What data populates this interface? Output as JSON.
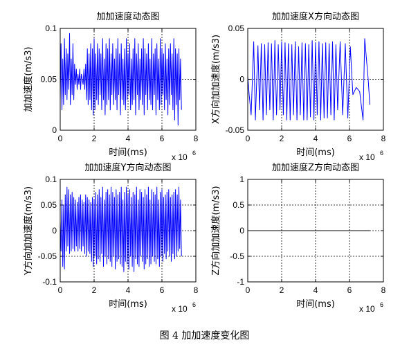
{
  "caption": "图 4  加加速度变化图",
  "colors": {
    "line": "#0000ff",
    "axis": "#000000",
    "background": "#ffffff"
  },
  "chart_data": [
    {
      "type": "line",
      "title": "加加速度动态图",
      "xlabel": "时间(ms)",
      "ylabel": "加加速度(m/s3)",
      "x_multiplier": "x 10",
      "x_exponent": "6",
      "xlim": [
        0,
        8
      ],
      "ylim": [
        0,
        0.1
      ],
      "xticks": [
        "0",
        "2",
        "4",
        "6",
        "8"
      ],
      "yticks": [
        "0",
        "0.05",
        "0.1"
      ],
      "grid": true,
      "series": [
        {
          "color": "#0000ff",
          "x": [
            0,
            0.05,
            0.1,
            0.15,
            0.2,
            0.25,
            0.3,
            0.35,
            0.4,
            0.45,
            0.5,
            0.55,
            0.6,
            0.65,
            0.7,
            0.75,
            0.8,
            0.85,
            0.9,
            0.95,
            1,
            1.05,
            1.1,
            1.15,
            1.2,
            1.25,
            1.3,
            1.35,
            1.4,
            1.45,
            1.5,
            1.55,
            1.6,
            1.65,
            1.7,
            1.75,
            1.8,
            1.85,
            1.9,
            1.95,
            2,
            2.05,
            2.1,
            2.15,
            2.2,
            2.25,
            2.3,
            2.35,
            2.4,
            2.45,
            2.5,
            2.55,
            2.6,
            2.65,
            2.7,
            2.75,
            2.8,
            2.85,
            2.9,
            2.95,
            3,
            3.05,
            3.1,
            3.15,
            3.2,
            3.25,
            3.3,
            3.35,
            3.4,
            3.45,
            3.5,
            3.55,
            3.6,
            3.65,
            3.7,
            3.75,
            3.8,
            3.85,
            3.9,
            3.95,
            4,
            4.05,
            4.1,
            4.15,
            4.2,
            4.25,
            4.3,
            4.35,
            4.4,
            4.45,
            4.5,
            4.55,
            4.6,
            4.65,
            4.7,
            4.75,
            4.8,
            4.85,
            4.9,
            4.95,
            5,
            5.05,
            5.1,
            5.15,
            5.2,
            5.25,
            5.3,
            5.35,
            5.4,
            5.45,
            5.5,
            5.55,
            5.6,
            5.65,
            5.7,
            5.75,
            5.8,
            5.85,
            5.9,
            5.95,
            6,
            6.05,
            6.1,
            6.15,
            6.2,
            6.25,
            6.3,
            6.35,
            6.4,
            6.45,
            6.5,
            6.55,
            6.6,
            6.65,
            6.7,
            6.75,
            6.8,
            6.85,
            6.9,
            6.95,
            7,
            7.05,
            7.1,
            7.15
          ],
          "y": [
            0.03,
            0.085,
            0.02,
            0.07,
            0.025,
            0.09,
            0.035,
            0.08,
            0.03,
            0.075,
            0.04,
            0.095,
            0.025,
            0.07,
            0.035,
            0.085,
            0.03,
            0.065,
            0.045,
            0.06,
            0.04,
            0.055,
            0.045,
            0.06,
            0.04,
            0.055,
            0.05,
            0.045,
            0.06,
            0.04,
            0.065,
            0.03,
            0.08,
            0.025,
            0.075,
            0.03,
            0.085,
            0.02,
            0.08,
            0.015,
            0.09,
            0.02,
            0.075,
            0.03,
            0.085,
            0.025,
            0.08,
            0.035,
            0.075,
            0.02,
            0.09,
            0.03,
            0.07,
            0.015,
            0.085,
            0.025,
            0.08,
            0.03,
            0.09,
            0.02,
            0.075,
            0.035,
            0.085,
            0.025,
            0.07,
            0.03,
            0.08,
            0.02,
            0.09,
            0.035,
            0.075,
            0.015,
            0.085,
            0.03,
            0.07,
            0.025,
            0.08,
            0.02,
            0.09,
            0.03,
            0.075,
            0.035,
            0.085,
            0.02,
            0.07,
            0.025,
            0.08,
            0.03,
            0.09,
            0.015,
            0.075,
            0.035,
            0.085,
            0.02,
            0.07,
            0.03,
            0.08,
            0.025,
            0.09,
            0.015,
            0.08,
            0.035,
            0.075,
            0.02,
            0.085,
            0.03,
            0.07,
            0.025,
            0.09,
            0.02,
            0.075,
            0.035,
            0.08,
            0.015,
            0.085,
            0.03,
            0.07,
            0.02,
            0.09,
            0.025,
            0.08,
            0.035,
            0.075,
            0.02,
            0.085,
            0.03,
            0.07,
            0.015,
            0.08,
            0.025,
            0.085,
            0.035,
            0.075,
            0.02,
            0.09,
            0.01,
            0.08,
            0.025,
            0.075,
            0.005,
            0.08,
            0.03,
            0.07,
            0.02
          ]
        }
      ]
    },
    {
      "type": "line",
      "title": "加加速度X方向动态图",
      "xlabel": "时间(ms)",
      "ylabel": "X方向加加速度(m/s3)",
      "x_multiplier": "x 10",
      "x_exponent": "6",
      "xlim": [
        0,
        8
      ],
      "ylim": [
        -0.05,
        0.05
      ],
      "xticks": [
        "0",
        "2",
        "4",
        "6",
        "8"
      ],
      "yticks": [
        "-0.05",
        "0",
        "0.05"
      ],
      "grid": true,
      "series": [
        {
          "color": "#0000ff",
          "x": [
            0,
            0.08,
            0.2,
            0.35,
            0.45,
            0.6,
            0.7,
            0.8,
            0.9,
            1,
            1.1,
            1.2,
            1.3,
            1.4,
            1.5,
            1.6,
            1.7,
            1.8,
            1.9,
            2,
            2.1,
            2.2,
            2.3,
            2.4,
            2.5,
            2.6,
            2.7,
            2.8,
            2.9,
            3,
            3.1,
            3.2,
            3.3,
            3.4,
            3.5,
            3.6,
            3.7,
            3.8,
            3.9,
            4,
            4.1,
            4.2,
            4.3,
            4.4,
            4.5,
            4.6,
            4.7,
            4.8,
            4.9,
            5,
            5.1,
            5.2,
            5.3,
            5.45,
            5.6,
            5.75,
            5.9,
            6.05,
            6.2,
            6.4,
            6.6,
            6.8,
            6.9,
            7,
            7.1,
            7.2
          ],
          "y": [
            0.003,
            -0.015,
            -0.035,
            0.037,
            -0.04,
            0.033,
            -0.03,
            0.035,
            -0.04,
            0.034,
            -0.035,
            0.036,
            -0.03,
            0.035,
            -0.04,
            0.038,
            -0.035,
            0.034,
            -0.03,
            0.037,
            -0.035,
            0.036,
            -0.04,
            0.035,
            -0.04,
            0.034,
            -0.035,
            0.037,
            -0.04,
            0.032,
            -0.035,
            0.036,
            -0.04,
            0.035,
            -0.04,
            0.034,
            -0.037,
            0.038,
            -0.04,
            0.036,
            -0.035,
            0.037,
            -0.04,
            0.035,
            -0.038,
            0.036,
            -0.038,
            0.035,
            -0.035,
            0.037,
            -0.04,
            0.034,
            -0.03,
            0.037,
            -0.035,
            0.035,
            -0.038,
            0.032,
            -0.015,
            -0.008,
            -0.012,
            -0.04,
            0.04,
            0.02,
            0.0,
            -0.025
          ]
        }
      ]
    },
    {
      "type": "line",
      "title": "加加速度Y方向动态图",
      "xlabel": "时间(ms)",
      "ylabel": "Y方向加加速度(m/s3)",
      "x_multiplier": "x 10",
      "x_exponent": "6",
      "xlim": [
        0,
        8
      ],
      "ylim": [
        -0.1,
        0.1
      ],
      "xticks": [
        "0",
        "2",
        "4",
        "6",
        "8"
      ],
      "yticks": [
        "-0.1",
        "-0.05",
        "0",
        "0.05",
        "0.1"
      ],
      "grid": true,
      "series": [
        {
          "color": "#0000ff",
          "x": [
            0,
            0.05,
            0.1,
            0.15,
            0.2,
            0.25,
            0.3,
            0.35,
            0.4,
            0.45,
            0.5,
            0.55,
            0.6,
            0.65,
            0.7,
            0.75,
            0.8,
            0.85,
            0.9,
            0.95,
            1,
            1.05,
            1.1,
            1.15,
            1.2,
            1.25,
            1.3,
            1.35,
            1.4,
            1.45,
            1.5,
            1.55,
            1.6,
            1.65,
            1.7,
            1.75,
            1.8,
            1.85,
            1.9,
            1.95,
            2,
            2.05,
            2.1,
            2.15,
            2.2,
            2.25,
            2.3,
            2.35,
            2.4,
            2.45,
            2.5,
            2.55,
            2.6,
            2.65,
            2.7,
            2.75,
            2.8,
            2.85,
            2.9,
            2.95,
            3,
            3.05,
            3.1,
            3.15,
            3.2,
            3.25,
            3.3,
            3.35,
            3.4,
            3.45,
            3.5,
            3.55,
            3.6,
            3.65,
            3.7,
            3.75,
            3.8,
            3.85,
            3.9,
            3.95,
            4,
            4.05,
            4.1,
            4.15,
            4.2,
            4.25,
            4.3,
            4.35,
            4.4,
            4.45,
            4.5,
            4.55,
            4.6,
            4.65,
            4.7,
            4.75,
            4.8,
            4.85,
            4.9,
            4.95,
            5,
            5.05,
            5.1,
            5.15,
            5.2,
            5.25,
            5.3,
            5.35,
            5.4,
            5.45,
            5.5,
            5.55,
            5.6,
            5.65,
            5.7,
            5.75,
            5.8,
            5.85,
            5.9,
            5.95,
            6,
            6.05,
            6.1,
            6.15,
            6.2,
            6.25,
            6.3,
            6.35,
            6.4,
            6.45,
            6.5,
            6.55,
            6.6,
            6.65,
            6.7,
            6.75,
            6.8,
            6.85,
            6.9,
            6.95,
            7,
            7.05,
            7.1,
            7.15
          ],
          "y": [
            0.02,
            -0.04,
            0.06,
            -0.07,
            0.05,
            -0.075,
            0.07,
            -0.04,
            0.085,
            -0.03,
            0.08,
            -0.045,
            0.07,
            -0.04,
            0.075,
            -0.035,
            0.065,
            -0.04,
            0.06,
            -0.03,
            0.055,
            -0.04,
            0.065,
            -0.035,
            0.07,
            -0.04,
            0.06,
            -0.03,
            0.055,
            -0.045,
            0.07,
            -0.05,
            0.065,
            -0.04,
            0.06,
            -0.045,
            0.055,
            -0.06,
            0.065,
            -0.07,
            0.06,
            -0.05,
            0.075,
            -0.065,
            0.07,
            -0.055,
            0.08,
            -0.06,
            0.065,
            -0.045,
            0.085,
            -0.07,
            0.06,
            -0.05,
            0.075,
            -0.065,
            0.08,
            -0.055,
            0.07,
            -0.06,
            0.085,
            -0.07,
            0.075,
            -0.05,
            0.065,
            -0.075,
            0.08,
            -0.06,
            0.07,
            -0.055,
            0.075,
            -0.065,
            0.085,
            -0.07,
            0.06,
            -0.08,
            0.075,
            -0.06,
            0.085,
            -0.065,
            0.07,
            -0.075,
            0.08,
            -0.05,
            0.065,
            -0.07,
            0.075,
            -0.08,
            0.07,
            -0.055,
            0.085,
            -0.065,
            0.06,
            -0.07,
            0.08,
            -0.05,
            0.075,
            -0.06,
            0.065,
            -0.075,
            0.08,
            -0.065,
            0.07,
            -0.055,
            0.085,
            -0.07,
            0.06,
            -0.065,
            0.08,
            -0.05,
            0.075,
            -0.06,
            0.07,
            -0.065,
            0.085,
            -0.055,
            0.06,
            -0.07,
            0.075,
            -0.05,
            0.08,
            -0.06,
            0.065,
            -0.045,
            0.07,
            -0.055,
            0.075,
            -0.04,
            0.08,
            -0.05,
            0.065,
            -0.06,
            0.07,
            -0.045,
            0.075,
            -0.055,
            0.08,
            -0.05,
            0.07,
            -0.04,
            0.085,
            -0.035,
            0.06,
            -0.05
          ]
        }
      ]
    },
    {
      "type": "line",
      "title": "加加速度Z方向动态图",
      "xlabel": "时间(ms)",
      "ylabel": "Z方向加加速度(m/s3)",
      "x_multiplier": "x 10",
      "x_exponent": "6",
      "xlim": [
        0,
        8
      ],
      "ylim": [
        -1,
        1
      ],
      "xticks": [
        "0",
        "2",
        "4",
        "6",
        "8"
      ],
      "yticks": [
        "-1",
        "-0.5",
        "0",
        "0.5",
        "1"
      ],
      "grid": true,
      "series": [
        {
          "color": "#000000",
          "x": [
            0,
            7.2
          ],
          "y": [
            0,
            0
          ]
        }
      ]
    }
  ]
}
